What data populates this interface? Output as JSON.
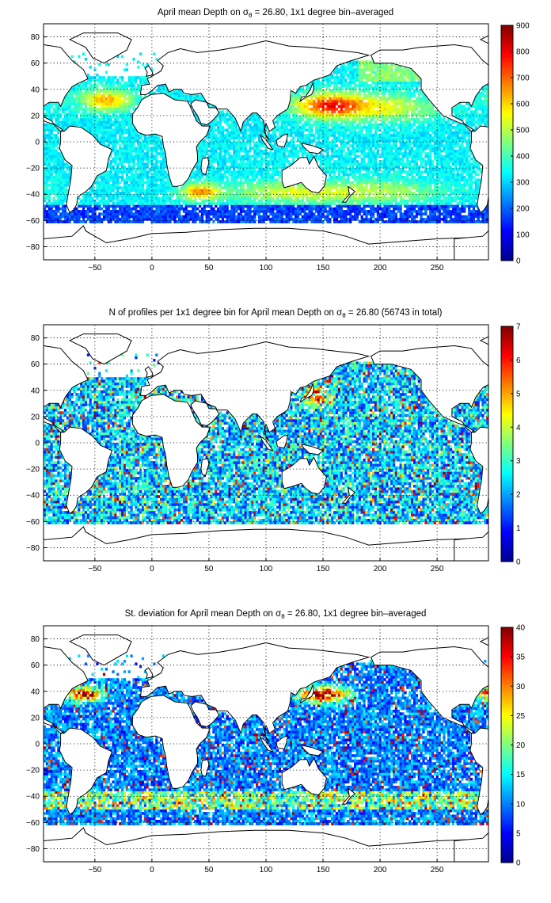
{
  "chart_data": [
    {
      "type": "heatmap",
      "title_prefix": "April mean Depth on ",
      "title_suffix": " = 26.80, 1x1 degree bin–averaged",
      "symbol": "σ",
      "symbol_sub": "θ",
      "xlim": [
        -95,
        295
      ],
      "ylim": [
        -90,
        90
      ],
      "xticks": [
        -50,
        0,
        50,
        100,
        150,
        200,
        250
      ],
      "yticks": [
        80,
        60,
        40,
        20,
        0,
        -20,
        -40,
        -60,
        -80
      ],
      "xtick_labels": [
        "−50",
        "0",
        "50",
        "100",
        "150",
        "200",
        "250"
      ],
      "ytick_labels": [
        "80",
        "60",
        "40",
        "20",
        "0",
        "−20",
        "−40",
        "−60",
        "−80"
      ],
      "grid": true,
      "colormap": "jet",
      "clim": [
        0,
        900
      ],
      "colorbar_ticks": [
        "900",
        "800",
        "700",
        "600",
        "500",
        "400",
        "300",
        "200",
        "100",
        "0"
      ],
      "colorbar_values": [
        900,
        800,
        700,
        600,
        500,
        400,
        300,
        200,
        100,
        0
      ],
      "field": "depth"
    },
    {
      "type": "heatmap",
      "title_prefix": "N of profiles per 1x1 degree bin for April mean Depth on ",
      "title_suffix": " = 26.80 (56743 in total)",
      "symbol": "σ",
      "symbol_sub": "θ",
      "xlim": [
        -95,
        295
      ],
      "ylim": [
        -90,
        90
      ],
      "xticks": [
        -50,
        0,
        50,
        100,
        150,
        200,
        250
      ],
      "yticks": [
        80,
        60,
        40,
        20,
        0,
        -20,
        -40,
        -60,
        -80
      ],
      "xtick_labels": [
        "−50",
        "0",
        "50",
        "100",
        "150",
        "200",
        "250"
      ],
      "ytick_labels": [
        "80",
        "60",
        "40",
        "20",
        "0",
        "−20",
        "−40",
        "−60",
        "−80"
      ],
      "grid": true,
      "colormap": "jet",
      "clim": [
        0,
        7
      ],
      "colorbar_ticks": [
        "7",
        "6",
        "5",
        "4",
        "3",
        "2",
        "1",
        "0"
      ],
      "colorbar_values": [
        7,
        6,
        5,
        4,
        3,
        2,
        1,
        0
      ],
      "field": "count"
    },
    {
      "type": "heatmap",
      "title_prefix": "St. deviation for April mean Depth on ",
      "title_suffix": " = 26.80, 1x1 degree bin–averaged",
      "symbol": "σ",
      "symbol_sub": "θ",
      "xlim": [
        -95,
        295
      ],
      "ylim": [
        -90,
        90
      ],
      "xticks": [
        -50,
        0,
        50,
        100,
        150,
        200,
        250
      ],
      "yticks": [
        80,
        60,
        40,
        20,
        0,
        -20,
        -40,
        -60,
        -80
      ],
      "xtick_labels": [
        "−50",
        "0",
        "50",
        "100",
        "150",
        "200",
        "250"
      ],
      "ytick_labels": [
        "80",
        "60",
        "40",
        "20",
        "0",
        "−20",
        "−40",
        "−60",
        "−80"
      ],
      "grid": true,
      "colormap": "jet",
      "clim": [
        0,
        40
      ],
      "colorbar_ticks": [
        "40",
        "35",
        "30",
        "25",
        "20",
        "15",
        "10",
        "5",
        "0"
      ],
      "colorbar_values": [
        40,
        35,
        30,
        25,
        20,
        15,
        10,
        5,
        0
      ],
      "field": "std"
    }
  ]
}
